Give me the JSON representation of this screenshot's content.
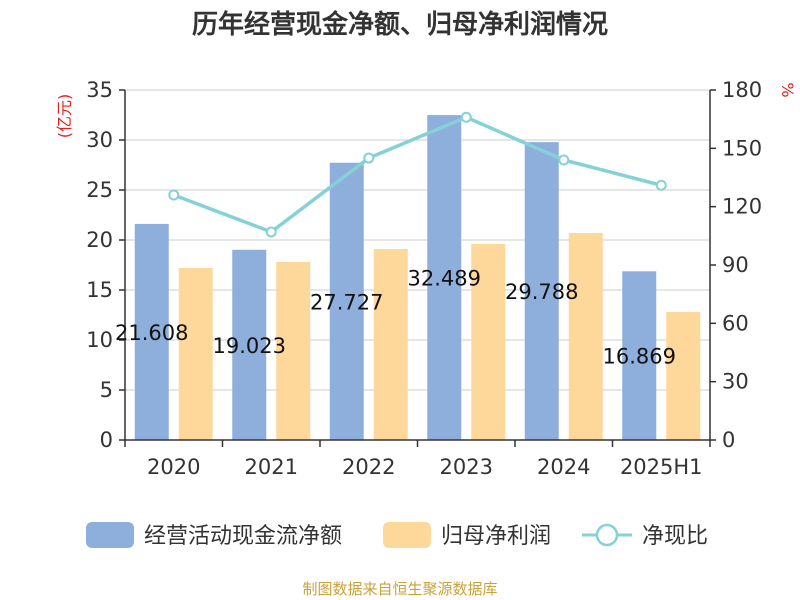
{
  "title": "历年经营现金净额、归母净利润情况",
  "source": "制图数据来自恒生聚源数据库",
  "chart_data": {
    "type": "bar",
    "title": "历年经营现金净额、归母净利润情况",
    "categories": [
      "2020",
      "2021",
      "2022",
      "2023",
      "2024",
      "2025H1"
    ],
    "series": [
      {
        "name": "经营活动现金流净额",
        "type": "bar",
        "axis": "left",
        "color": "#8eaedb",
        "values": [
          21.608,
          19.023,
          27.727,
          32.489,
          29.788,
          16.869
        ],
        "labels": [
          "21.608",
          "19.023",
          "27.727",
          "32.489",
          "29.788",
          "16.869"
        ]
      },
      {
        "name": "归母净利润",
        "type": "bar",
        "axis": "left",
        "color": "#fdd89a",
        "values": [
          17.2,
          17.8,
          19.1,
          19.6,
          20.7,
          12.8
        ]
      },
      {
        "name": "净现比",
        "type": "line",
        "axis": "right",
        "color": "#86d1d6",
        "values": [
          126,
          107,
          145,
          166,
          144,
          131
        ]
      }
    ],
    "y_left": {
      "label": "(亿元)",
      "ylim": [
        0,
        35
      ],
      "ticks": [
        0,
        5,
        10,
        15,
        20,
        25,
        30,
        35
      ]
    },
    "y_right": {
      "label": "%",
      "ylim": [
        0,
        180
      ],
      "ticks": [
        0,
        30,
        60,
        90,
        120,
        150,
        180
      ]
    },
    "grid": true,
    "legend": "bottom"
  }
}
